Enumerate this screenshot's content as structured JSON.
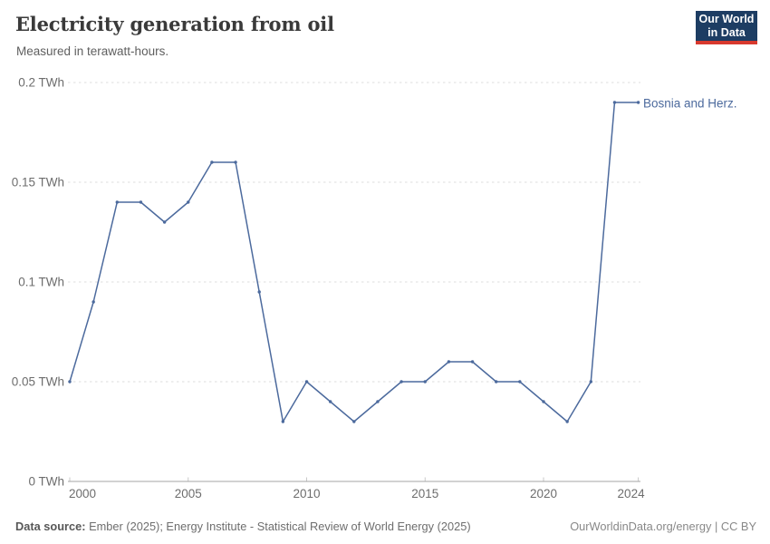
{
  "header": {
    "title": "Electricity generation from oil",
    "subtitle": "Measured in terawatt-hours.",
    "logo": {
      "line1": "Our World",
      "line2": "in Data",
      "bg_color": "#1d3d63",
      "accent_color": "#d8392e"
    }
  },
  "chart_data": {
    "type": "line",
    "title": "Electricity generation from oil",
    "subtitle": "Measured in terawatt-hours.",
    "unit": "TWh",
    "xlabel": "",
    "ylabel": "",
    "xlim": [
      2000,
      2024
    ],
    "ylim": [
      0,
      0.2
    ],
    "xticks": [
      2000,
      2005,
      2010,
      2015,
      2020,
      2024
    ],
    "yticks": [
      0,
      0.05,
      0.1,
      0.15,
      0.2
    ],
    "ytick_suffix": " TWh",
    "grid": "horizontal-dashed",
    "legend_position": "end-of-line",
    "series": [
      {
        "name": "Bosnia and Herz.",
        "color": "#4c6a9d",
        "x": [
          2000,
          2001,
          2002,
          2003,
          2004,
          2005,
          2006,
          2007,
          2008,
          2009,
          2010,
          2011,
          2012,
          2013,
          2014,
          2015,
          2016,
          2017,
          2018,
          2019,
          2020,
          2021,
          2022,
          2023,
          2024
        ],
        "values": [
          0.05,
          0.09,
          0.14,
          0.14,
          0.13,
          0.14,
          0.16,
          0.16,
          0.095,
          0.03,
          0.05,
          0.04,
          0.03,
          0.04,
          0.05,
          0.05,
          0.06,
          0.06,
          0.05,
          0.05,
          0.04,
          0.03,
          0.05,
          0.19,
          0.19
        ]
      }
    ],
    "colors": {
      "gridline": "#dedede",
      "axis_line": "#a5a5a5",
      "tick_mark": "#c8c8c8",
      "tick_text": "#6d6d6d"
    }
  },
  "footer": {
    "source_label": "Data source:",
    "source_text": " Ember (2025); Energy Institute - Statistical Review of World Energy (2025)",
    "credit": "OurWorldinData.org/energy | CC BY"
  }
}
